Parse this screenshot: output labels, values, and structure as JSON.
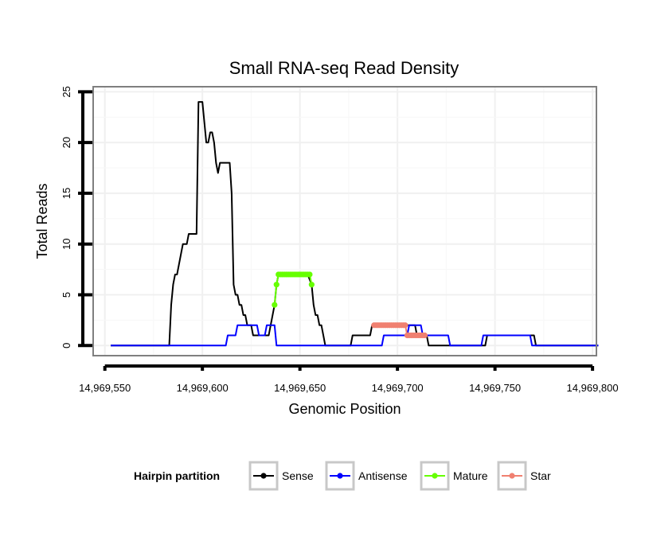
{
  "chart_data": {
    "type": "line",
    "title": "Small RNA-seq Read Density",
    "xlabel": "Genomic Position",
    "ylabel": "Total Reads",
    "xlim": [
      14969544,
      14969802
    ],
    "ylim": [
      -1,
      25.5
    ],
    "x_ticks": [
      14969550,
      14969600,
      14969650,
      14969700,
      14969750,
      14969800
    ],
    "x_tick_labels": [
      "14,969,550",
      "14,969,600",
      "14,969,650",
      "14,969,700",
      "14,969,750",
      "14,969,800"
    ],
    "y_ticks": [
      0,
      5,
      10,
      15,
      20,
      25
    ],
    "y_tick_labels": [
      "0",
      "5",
      "10",
      "15",
      "20",
      "25"
    ],
    "grid": true,
    "legend": {
      "title": "Hairpin partition",
      "position": "bottom",
      "entries": [
        "Sense",
        "Antisense",
        "Mature",
        "Star"
      ]
    },
    "series": [
      {
        "name": "Sense",
        "color": "#000000",
        "markers": false,
        "points": [
          [
            14969553,
            0
          ],
          [
            14969583,
            0
          ],
          [
            14969584,
            4
          ],
          [
            14969585,
            6
          ],
          [
            14969586,
            7
          ],
          [
            14969587,
            7
          ],
          [
            14969588,
            8
          ],
          [
            14969589,
            9
          ],
          [
            14969590,
            10
          ],
          [
            14969591,
            10
          ],
          [
            14969592,
            10
          ],
          [
            14969593,
            11
          ],
          [
            14969594,
            11
          ],
          [
            14969595,
            11
          ],
          [
            14969596,
            11
          ],
          [
            14969597,
            11
          ],
          [
            14969598,
            24
          ],
          [
            14969599,
            24
          ],
          [
            14969600,
            24
          ],
          [
            14969601,
            22
          ],
          [
            14969602,
            20
          ],
          [
            14969603,
            20
          ],
          [
            14969604,
            21
          ],
          [
            14969605,
            21
          ],
          [
            14969606,
            20
          ],
          [
            14969607,
            18
          ],
          [
            14969608,
            17
          ],
          [
            14969609,
            18
          ],
          [
            14969610,
            18
          ],
          [
            14969611,
            18
          ],
          [
            14969612,
            18
          ],
          [
            14969613,
            18
          ],
          [
            14969614,
            18
          ],
          [
            14969615,
            15
          ],
          [
            14969616,
            6
          ],
          [
            14969617,
            5
          ],
          [
            14969618,
            5
          ],
          [
            14969619,
            4
          ],
          [
            14969620,
            4
          ],
          [
            14969621,
            3
          ],
          [
            14969622,
            3
          ],
          [
            14969623,
            2
          ],
          [
            14969624,
            2
          ],
          [
            14969625,
            2
          ],
          [
            14969626,
            1
          ],
          [
            14969627,
            1
          ],
          [
            14969632,
            1
          ],
          [
            14969634,
            1
          ],
          [
            14969635,
            2
          ],
          [
            14969636,
            3
          ],
          [
            14969637,
            4
          ],
          [
            14969638,
            6
          ],
          [
            14969639,
            7
          ],
          [
            14969654,
            7
          ],
          [
            14969656,
            6
          ],
          [
            14969657,
            4
          ],
          [
            14969658,
            3
          ],
          [
            14969659,
            3
          ],
          [
            14969660,
            2
          ],
          [
            14969661,
            2
          ],
          [
            14969662,
            1
          ],
          [
            14969663,
            0
          ],
          [
            14969676,
            0
          ],
          [
            14969677,
            1
          ],
          [
            14969686,
            1
          ],
          [
            14969687,
            2
          ],
          [
            14969709,
            2
          ],
          [
            14969710,
            1
          ],
          [
            14969715,
            1
          ],
          [
            14969716,
            0
          ],
          [
            14969745,
            0
          ],
          [
            14969746,
            1
          ],
          [
            14969770,
            1
          ],
          [
            14969771,
            0
          ],
          [
            14969803,
            0
          ]
        ]
      },
      {
        "name": "Antisense",
        "color": "#0000ff",
        "markers": false,
        "points": [
          [
            14969553,
            0
          ],
          [
            14969612,
            0
          ],
          [
            14969613,
            1
          ],
          [
            14969617,
            1
          ],
          [
            14969618,
            2
          ],
          [
            14969628,
            2
          ],
          [
            14969629,
            1
          ],
          [
            14969632,
            1
          ],
          [
            14969633,
            2
          ],
          [
            14969637,
            2
          ],
          [
            14969638,
            0
          ],
          [
            14969692,
            0
          ],
          [
            14969693,
            1
          ],
          [
            14969705,
            1
          ],
          [
            14969706,
            2
          ],
          [
            14969712,
            2
          ],
          [
            14969713,
            1
          ],
          [
            14969726,
            1
          ],
          [
            14969727,
            0
          ],
          [
            14969743,
            0
          ],
          [
            14969744,
            1
          ],
          [
            14969768,
            1
          ],
          [
            14969769,
            0
          ],
          [
            14969803,
            0
          ]
        ]
      },
      {
        "name": "Mature",
        "color": "#66ff00",
        "markers": true,
        "points": [
          [
            14969637,
            4
          ],
          [
            14969638,
            6
          ],
          [
            14969639,
            7
          ],
          [
            14969640,
            7
          ],
          [
            14969641,
            7
          ],
          [
            14969642,
            7
          ],
          [
            14969643,
            7
          ],
          [
            14969644,
            7
          ],
          [
            14969645,
            7
          ],
          [
            14969646,
            7
          ],
          [
            14969647,
            7
          ],
          [
            14969648,
            7
          ],
          [
            14969649,
            7
          ],
          [
            14969650,
            7
          ],
          [
            14969651,
            7
          ],
          [
            14969652,
            7
          ],
          [
            14969653,
            7
          ],
          [
            14969654,
            7
          ],
          [
            14969655,
            7
          ],
          [
            14969656,
            6
          ]
        ]
      },
      {
        "name": "Star",
        "color": "#f08070",
        "markers": true,
        "points": [
          [
            14969688,
            2
          ],
          [
            14969689,
            2
          ],
          [
            14969690,
            2
          ],
          [
            14969691,
            2
          ],
          [
            14969692,
            2
          ],
          [
            14969693,
            2
          ],
          [
            14969694,
            2
          ],
          [
            14969695,
            2
          ],
          [
            14969696,
            2
          ],
          [
            14969697,
            2
          ],
          [
            14969698,
            2
          ],
          [
            14969699,
            2
          ],
          [
            14969700,
            2
          ],
          [
            14969701,
            2
          ],
          [
            14969702,
            2
          ],
          [
            14969703,
            2
          ],
          [
            14969704,
            2
          ],
          [
            14969705,
            1
          ],
          [
            14969706,
            1
          ],
          [
            14969707,
            1
          ],
          [
            14969708,
            1
          ],
          [
            14969709,
            1
          ],
          [
            14969710,
            1
          ],
          [
            14969711,
            1
          ],
          [
            14969712,
            1
          ],
          [
            14969713,
            1
          ],
          [
            14969714,
            1
          ]
        ]
      }
    ]
  }
}
